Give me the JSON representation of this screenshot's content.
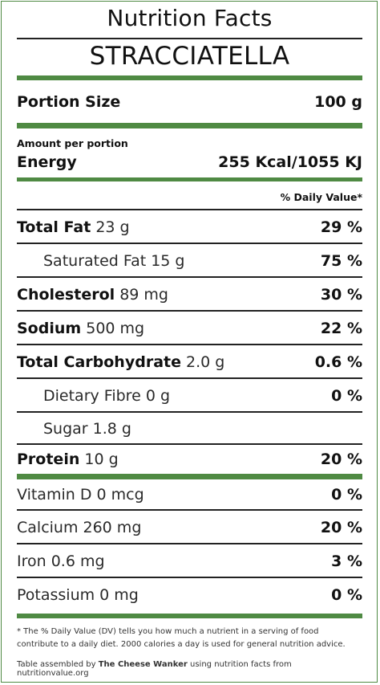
{
  "header": {
    "title": "Nutrition Facts",
    "product": "STRACCIATELLA"
  },
  "portion": {
    "label": "Portion Size",
    "value": "100 g"
  },
  "energy": {
    "amount_label": "Amount per portion",
    "label": "Energy",
    "value": "255 Kcal/1055 KJ"
  },
  "dv_header": "% Daily Value*",
  "nutrients": {
    "total_fat": {
      "label": "Total Fat",
      "amount": "23 g",
      "dv": "29 %"
    },
    "saturated_fat": {
      "label": "Saturated Fat",
      "amount": "15 g",
      "dv": "75 %"
    },
    "cholesterol": {
      "label": "Cholesterol",
      "amount": "89 mg",
      "dv": "30 %"
    },
    "sodium": {
      "label": "Sodium",
      "amount": "500 mg",
      "dv": "22 %"
    },
    "total_carbohydrate": {
      "label": "Total Carbohydrate",
      "amount": "2.0 g",
      "dv": "0.6 %"
    },
    "dietary_fibre": {
      "label": "Dietary Fibre",
      "amount": "0 g",
      "dv": "0 %"
    },
    "sugar": {
      "label": "Sugar",
      "amount": "1.8 g",
      "dv": ""
    },
    "protein": {
      "label": "Protein",
      "amount": "10 g",
      "dv": "20 %"
    }
  },
  "micronutrients": {
    "vitamin_d": {
      "label": "Vitamin D 0 mcg",
      "dv": "0 %"
    },
    "calcium": {
      "label": "Calcium 260 mg",
      "dv": "20 %"
    },
    "iron": {
      "label": "Iron 0.6 mg",
      "dv": "3 %"
    },
    "potassium": {
      "label": "Potassium 0 mg",
      "dv": "0 %"
    }
  },
  "footnote": "* The % Daily Value (DV) tells you how much a nutrient in a serving of food contribute to a daily diet. 2000 calories a day is used for general nutrition advice.",
  "credit": {
    "prefix": "Table assembled by ",
    "author": "The Cheese Wanker",
    "suffix": " using nutrition facts from nutritionvalue.org"
  },
  "colors": {
    "accent_green": "#4f8a43",
    "rule": "#222222"
  }
}
